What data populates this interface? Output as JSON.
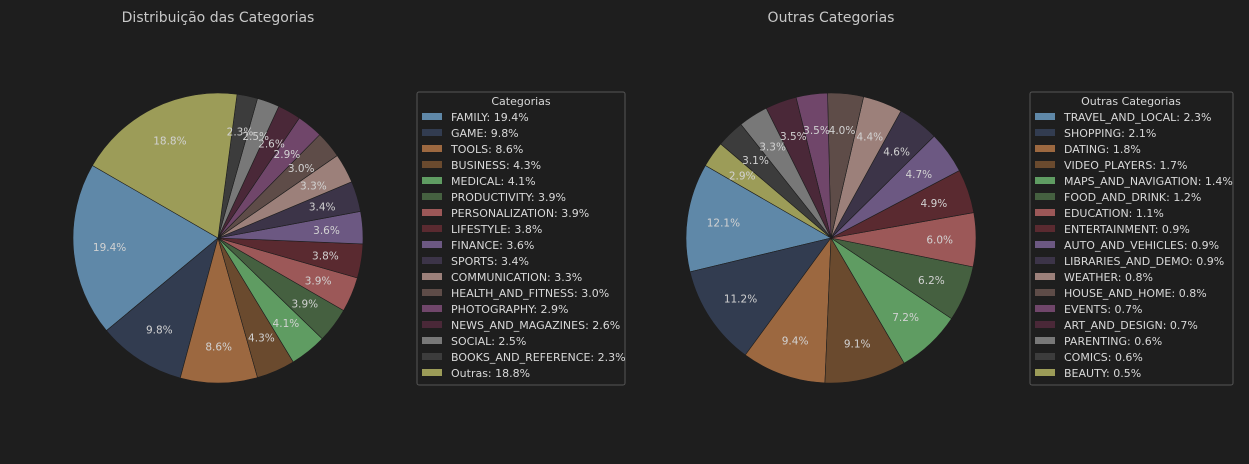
{
  "chart_data": [
    {
      "type": "pie",
      "title": "Distribuição das Categorias",
      "legend_title": "Categorias",
      "legend_position": "right",
      "categories": [
        "FAMILY",
        "GAME",
        "TOOLS",
        "BUSINESS",
        "MEDICAL",
        "PRODUCTIVITY",
        "PERSONALIZATION",
        "LIFESTYLE",
        "FINANCE",
        "SPORTS",
        "COMMUNICATION",
        "HEALTH_AND_FITNESS",
        "PHOTOGRAPHY",
        "NEWS_AND_MAGAZINES",
        "SOCIAL",
        "BOOKS_AND_REFERENCE",
        "Outras"
      ],
      "values": [
        19.4,
        9.8,
        8.6,
        4.3,
        4.1,
        3.9,
        3.9,
        3.8,
        3.6,
        3.4,
        3.3,
        3.0,
        2.9,
        2.6,
        2.5,
        2.3,
        18.8
      ],
      "labels": [
        "19.4%",
        "9.8%",
        "8.6%",
        "4.3%",
        "4.1%",
        "3.9%",
        "3.9%",
        "3.8%",
        "3.6%",
        "3.4%",
        "3.3%",
        "3.0%",
        "2.9%",
        "2.6%",
        "2.5%",
        "2.3%",
        "18.8%"
      ],
      "legend_entries": [
        "FAMILY: 19.4%",
        "GAME: 9.8%",
        "TOOLS: 8.6%",
        "BUSINESS: 4.3%",
        "MEDICAL: 4.1%",
        "PRODUCTIVITY: 3.9%",
        "PERSONALIZATION: 3.9%",
        "LIFESTYLE: 3.8%",
        "FINANCE: 3.6%",
        "SPORTS: 3.4%",
        "COMMUNICATION: 3.3%",
        "HEALTH_AND_FITNESS: 3.0%",
        "PHOTOGRAPHY: 2.9%",
        "NEWS_AND_MAGAZINES: 2.6%",
        "SOCIAL: 2.5%",
        "BOOKS_AND_REFERENCE: 2.3%",
        "Outras: 18.8%"
      ],
      "colors": [
        "#5f88a8",
        "#323c50",
        "#9c6840",
        "#6a4a2e",
        "#5f9c62",
        "#456040",
        "#9c5858",
        "#5a2a30",
        "#6c5882",
        "#3c3448",
        "#9c807a",
        "#5e4c48",
        "#70466a",
        "#4a2838",
        "#787878",
        "#3c3c3c",
        "#9c9c58"
      ]
    },
    {
      "type": "pie",
      "title": "Outras Categorias",
      "legend_title": "Outras Categorias",
      "legend_position": "right",
      "categories": [
        "TRAVEL_AND_LOCAL",
        "SHOPPING",
        "DATING",
        "VIDEO_PLAYERS",
        "MAPS_AND_NAVIGATION",
        "FOOD_AND_DRINK",
        "EDUCATION",
        "ENTERTAINMENT",
        "AUTO_AND_VEHICLES",
        "LIBRARIES_AND_DEMO",
        "WEATHER",
        "HOUSE_AND_HOME",
        "EVENTS",
        "ART_AND_DESIGN",
        "PARENTING",
        "COMICS",
        "BEAUTY"
      ],
      "values": [
        12.1,
        11.2,
        9.4,
        9.1,
        7.2,
        6.2,
        6.0,
        4.9,
        4.7,
        4.6,
        4.4,
        4.0,
        3.5,
        3.5,
        3.3,
        3.1,
        2.9
      ],
      "labels": [
        "12.1%",
        "11.2%",
        "9.4%",
        "9.1%",
        "7.2%",
        "6.2%",
        "6.0%",
        "4.9%",
        "4.7%",
        "4.6%",
        "4.4%",
        "4.0%",
        "3.5%",
        "3.5%",
        "3.3%",
        "3.1%",
        "2.9%"
      ],
      "legend_entries": [
        "TRAVEL_AND_LOCAL: 2.3%",
        "SHOPPING: 2.1%",
        "DATING: 1.8%",
        "VIDEO_PLAYERS: 1.7%",
        "MAPS_AND_NAVIGATION: 1.4%",
        "FOOD_AND_DRINK: 1.2%",
        "EDUCATION: 1.1%",
        "ENTERTAINMENT: 0.9%",
        "AUTO_AND_VEHICLES: 0.9%",
        "LIBRARIES_AND_DEMO: 0.9%",
        "WEATHER: 0.8%",
        "HOUSE_AND_HOME: 0.8%",
        "EVENTS: 0.7%",
        "ART_AND_DESIGN: 0.7%",
        "PARENTING: 0.6%",
        "COMICS: 0.6%",
        "BEAUTY: 0.5%"
      ],
      "colors": [
        "#5f88a8",
        "#323c50",
        "#9c6840",
        "#6a4a2e",
        "#5f9c62",
        "#456040",
        "#9c5858",
        "#5a2a30",
        "#6c5882",
        "#3c3448",
        "#9c807a",
        "#5e4c48",
        "#70466a",
        "#4a2838",
        "#787878",
        "#3c3c3c",
        "#9c9c58"
      ]
    }
  ]
}
